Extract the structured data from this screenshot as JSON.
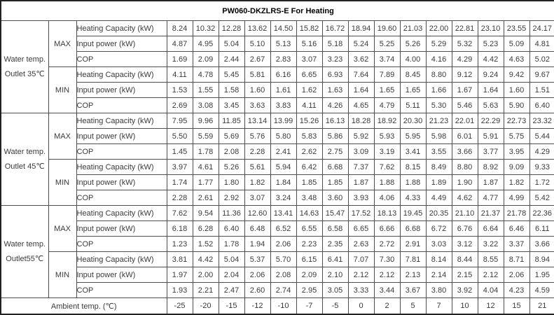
{
  "title": "PW060-DKZLRS-E For Heating",
  "labels": {
    "max": "MAX",
    "min": "MIN",
    "heating_capacity": "Heating Capacity (kW)",
    "input_power": "Input power (kW)",
    "cop": "COP"
  },
  "ambient": {
    "label": "Ambient temp. (℃)",
    "values": [
      "-25",
      "-20",
      "-15",
      "-12",
      "-10",
      "-7",
      "-5",
      "0",
      "2",
      "5",
      "7",
      "10",
      "12",
      "15",
      "21"
    ]
  },
  "groups": [
    {
      "label_line1": "Water temp.",
      "label_line2": "Outlet 35℃",
      "max": {
        "heating_capacity": [
          "8.24",
          "10.32",
          "12.28",
          "13.62",
          "14.50",
          "15.82",
          "16.72",
          "18.94",
          "19.60",
          "21.03",
          "22.00",
          "22.81",
          "23.10",
          "23.55",
          "24.17"
        ],
        "input_power": [
          "4.87",
          "4.95",
          "5.04",
          "5.10",
          "5.13",
          "5.16",
          "5.18",
          "5.24",
          "5.25",
          "5.26",
          "5.29",
          "5.32",
          "5.23",
          "5.09",
          "4.81"
        ],
        "cop": [
          "1.69",
          "2.09",
          "2.44",
          "2.67",
          "2.83",
          "3.07",
          "3.23",
          "3.62",
          "3.74",
          "4.00",
          "4.16",
          "4.29",
          "4.42",
          "4.63",
          "5.02"
        ]
      },
      "min": {
        "heating_capacity": [
          "4.11",
          "4.78",
          "5.45",
          "5.81",
          "6.16",
          "6.65",
          "6.93",
          "7.64",
          "7.89",
          "8.45",
          "8.80",
          "9.12",
          "9.24",
          "9.42",
          "9.67"
        ],
        "input_power": [
          "1.53",
          "1.55",
          "1.58",
          "1.60",
          "1.61",
          "1.62",
          "1.63",
          "1.64",
          "1.65",
          "1.65",
          "1.66",
          "1.67",
          "1.64",
          "1.60",
          "1.51"
        ],
        "cop": [
          "2.69",
          "3.08",
          "3.45",
          "3.63",
          "3.83",
          "4.11",
          "4.26",
          "4.65",
          "4.79",
          "5.11",
          "5.30",
          "5.46",
          "5.63",
          "5.90",
          "6.40"
        ]
      }
    },
    {
      "label_line1": "Water temp.",
      "label_line2": "Outlet 45℃",
      "max": {
        "heating_capacity": [
          "7.95",
          "9.96",
          "11.85",
          "13.14",
          "13.99",
          "15.26",
          "16.13",
          "18.28",
          "18.92",
          "20.30",
          "21.23",
          "22.01",
          "22.29",
          "22.73",
          "23.32"
        ],
        "input_power": [
          "5.50",
          "5.59",
          "5.69",
          "5.76",
          "5.80",
          "5.83",
          "5.86",
          "5.92",
          "5.93",
          "5.95",
          "5.98",
          "6.01",
          "5.91",
          "5.75",
          "5.44"
        ],
        "cop": [
          "1.45",
          "1.78",
          "2.08",
          "2.28",
          "2.41",
          "2.62",
          "2.75",
          "3.09",
          "3.19",
          "3.41",
          "3.55",
          "3.66",
          "3.77",
          "3.95",
          "4.29"
        ]
      },
      "min": {
        "heating_capacity": [
          "3.97",
          "4.61",
          "5.26",
          "5.61",
          "5.94",
          "6.42",
          "6.68",
          "7.37",
          "7.62",
          "8.15",
          "8.49",
          "8.80",
          "8.92",
          "9.09",
          "9.33"
        ],
        "input_power": [
          "1.74",
          "1.77",
          "1.80",
          "1.82",
          "1.84",
          "1.85",
          "1.85",
          "1.87",
          "1.88",
          "1.88",
          "1.89",
          "1.90",
          "1.87",
          "1.82",
          "1.72"
        ],
        "cop": [
          "2.28",
          "2.61",
          "2.92",
          "3.07",
          "3.24",
          "3.48",
          "3.60",
          "3.93",
          "4.06",
          "4.33",
          "4.49",
          "4.62",
          "4.77",
          "4.99",
          "5.42"
        ]
      }
    },
    {
      "label_line1": "Water temp.",
      "label_line2": "Outlet55℃",
      "max": {
        "heating_capacity": [
          "7.62",
          "9.54",
          "11.36",
          "12.60",
          "13.41",
          "14.63",
          "15.47",
          "17.52",
          "18.13",
          "19.45",
          "20.35",
          "21.10",
          "21.37",
          "21.78",
          "22.36"
        ],
        "input_power": [
          "6.18",
          "6.28",
          "6.40",
          "6.48",
          "6.52",
          "6.55",
          "6.58",
          "6.65",
          "6.66",
          "6.68",
          "6.72",
          "6.76",
          "6.64",
          "6.46",
          "6.11"
        ],
        "cop": [
          "1.23",
          "1.52",
          "1.78",
          "1.94",
          "2.06",
          "2.23",
          "2.35",
          "2.63",
          "2.72",
          "2.91",
          "3.03",
          "3.12",
          "3.22",
          "3.37",
          "3.66"
        ]
      },
      "min": {
        "heating_capacity": [
          "3.81",
          "4.42",
          "5.04",
          "5.37",
          "5.70",
          "6.15",
          "6.41",
          "7.07",
          "7.30",
          "7.81",
          "8.14",
          "8.44",
          "8.55",
          "8.71",
          "8.94"
        ],
        "input_power": [
          "1.97",
          "2.00",
          "2.04",
          "2.06",
          "2.08",
          "2.09",
          "2.10",
          "2.12",
          "2.12",
          "2.13",
          "2.14",
          "2.15",
          "2.12",
          "2.06",
          "1.95"
        ],
        "cop": [
          "1.93",
          "2.21",
          "2.47",
          "2.60",
          "2.74",
          "2.95",
          "3.05",
          "3.33",
          "3.44",
          "3.67",
          "3.80",
          "3.92",
          "4.04",
          "4.23",
          "4.59"
        ]
      }
    }
  ]
}
